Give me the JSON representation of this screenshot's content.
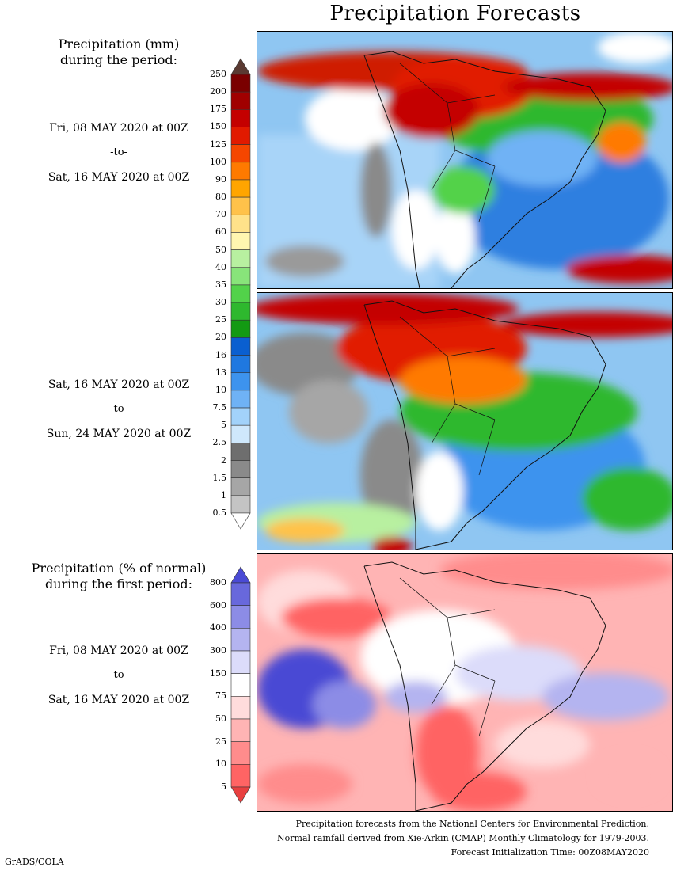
{
  "title": "Precipitation Forecasts",
  "panels": {
    "amount": {
      "heading": [
        "Precipitation (mm)",
        "during the period:"
      ],
      "colorbar": {
        "labels": [
          "250",
          "200",
          "175",
          "150",
          "125",
          "100",
          "90",
          "80",
          "70",
          "60",
          "50",
          "40",
          "35",
          "30",
          "25",
          "20",
          "16",
          "13",
          "10",
          "7.5",
          "5",
          "2.5",
          "2",
          "1.5",
          "1",
          "0.5"
        ],
        "colors": [
          "#5a3a32",
          "#7a0000",
          "#a00000",
          "#c40000",
          "#e11a00",
          "#f54600",
          "#ff7a00",
          "#ffa500",
          "#ffc24a",
          "#ffe28a",
          "#fff6b0",
          "#b8f0a0",
          "#88e47a",
          "#52d24a",
          "#2eb82e",
          "#139a13",
          "#0a5fd0",
          "#1f78e0",
          "#3d93ee",
          "#6fb2f5",
          "#a2d2fa",
          "#cfe8fc",
          "#6e6e6e",
          "#8a8a8a",
          "#a6a6a6",
          "#c4c4c4",
          "#ffffff"
        ]
      },
      "period1": {
        "from": "Fri, 08 MAY 2020 at 00Z",
        "sep": "-to-",
        "to": "Sat, 16 MAY 2020 at 00Z"
      },
      "period2": {
        "from": "Sat, 16 MAY 2020 at 00Z",
        "sep": "-to-",
        "to": "Sun, 24 MAY 2020 at 00Z"
      }
    },
    "percent": {
      "heading": [
        "Precipitation (% of normal)",
        "during the first period:"
      ],
      "colorbar": {
        "labels": [
          "800",
          "600",
          "400",
          "300",
          "150",
          "75",
          "50",
          "25",
          "10",
          "5"
        ],
        "colors": [
          "#4a4ad4",
          "#6868dc",
          "#8c8ce6",
          "#b4b4f0",
          "#dcdcfa",
          "#ffffff",
          "#ffdcdc",
          "#ffb4b4",
          "#ff8c8c",
          "#ff6464",
          "#e84040"
        ]
      },
      "period": {
        "from": "Fri, 08 MAY 2020 at 00Z",
        "sep": "-to-",
        "to": "Sat, 16 MAY 2020 at 00Z"
      }
    }
  },
  "footer": [
    "Precipitation forecasts from the National Centers for Environmental Prediction.",
    "Normal rainfall derived from Xie-Arkin (CMAP) Monthly Climatology for 1979-2003.",
    "Forecast Initialization Time: 00Z08MAY2020"
  ],
  "credit": "GrADS/COLA"
}
